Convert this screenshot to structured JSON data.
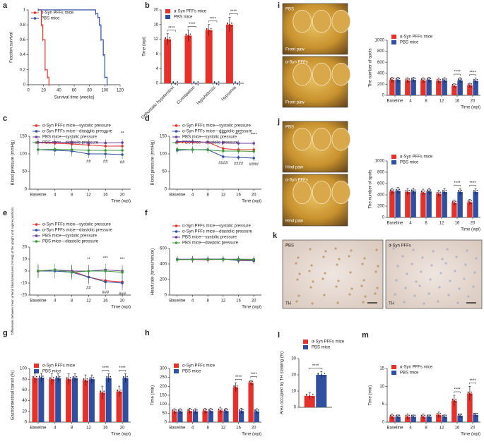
{
  "chart_data": [
    {
      "panel": "a",
      "type": "step",
      "xlabel": "Survival time (weeks)",
      "ylabel": "Fraction survival",
      "xlim": [
        0,
        120
      ],
      "xticks": [
        0,
        20,
        40,
        60,
        80,
        100,
        120
      ],
      "ylim": [
        0,
        1
      ],
      "yticks": [
        0,
        0.2,
        0.4,
        0.6,
        0.8,
        1.0
      ],
      "series": [
        {
          "name": "α-Syn PFFs mice",
          "color": "#e8302b",
          "x": [
            13,
            17,
            19,
            22,
            25,
            27
          ],
          "values": [
            1,
            0.8,
            0.6,
            0.2,
            0.1,
            0
          ]
        },
        {
          "name": "PBS mice",
          "color": "#2f4fa0",
          "x": [
            13,
            88,
            91,
            93,
            95,
            98,
            100,
            103
          ],
          "values": [
            1,
            0.95,
            0.9,
            0.8,
            0.6,
            0.4,
            0.1,
            0
          ]
        }
      ]
    },
    {
      "panel": "b",
      "type": "bar",
      "ylabel": "Time (wpi)",
      "ylim": [
        0,
        20
      ],
      "yticks": [
        0,
        4,
        8,
        12,
        16,
        20
      ],
      "categories": [
        "Orthostatic hypotension",
        "Constipation",
        "Hypohidrosis",
        "Hyposmia"
      ],
      "series": [
        {
          "name": "α-Syn PFFs mice",
          "color": "#e8302b",
          "values": [
            12,
            13,
            14.5,
            16
          ],
          "errors": [
            1.5,
            1.5,
            1.5,
            2
          ]
        },
        {
          "name": "PBS mice",
          "color": "#2f4fa0",
          "values": [
            0,
            0,
            0,
            0
          ],
          "errors": [
            0,
            0,
            0,
            0
          ]
        }
      ],
      "annotations": [
        {
          "text": "****",
          "category": "Orthostatic hypotension"
        },
        {
          "text": "****",
          "category": "Constipation"
        },
        {
          "text": "****",
          "category": "Hypohidrosis"
        },
        {
          "text": "****",
          "category": "Hyposmia"
        }
      ]
    },
    {
      "panel": "c",
      "type": "line",
      "xlabel": "Time (wpi)",
      "ylabel": "Blood pressure (mmHg)",
      "ylim": [
        0,
        150
      ],
      "yticks": [
        0,
        50,
        100,
        150
      ],
      "categories": [
        "Baseline",
        "4",
        "8",
        "12",
        "16",
        "20"
      ],
      "series": [
        {
          "name": "α-Syn PFFs mice—systolic pressure",
          "color": "#e8302b",
          "values": [
            132,
            130,
            128,
            125,
            122,
            122
          ],
          "errors": [
            10,
            10,
            10,
            10,
            10,
            10
          ]
        },
        {
          "name": "α-Syn PFFs mice—diastolic pressure",
          "color": "#2f4fa0",
          "values": [
            112,
            110,
            108,
            100,
            100,
            98
          ],
          "errors": [
            15,
            15,
            15,
            12,
            12,
            12
          ]
        },
        {
          "name": "PBS mice—systolic pressure",
          "color": "#6a3d9a",
          "values": [
            133,
            133,
            133,
            131,
            131,
            132
          ],
          "errors": [
            10,
            10,
            10,
            10,
            10,
            10
          ]
        },
        {
          "name": "PBS mice—diastolic pressure",
          "color": "#3a9a3a",
          "values": [
            112,
            113,
            112,
            110,
            110,
            110
          ],
          "errors": [
            12,
            12,
            12,
            12,
            12,
            12
          ]
        }
      ],
      "annotations": [
        {
          "text": "**",
          "category": "12"
        },
        {
          "text": "**",
          "category": "16"
        },
        {
          "text": "**",
          "category": "20"
        }
      ],
      "annotations_low": [
        {
          "text": "##",
          "category": "12"
        },
        {
          "text": "##",
          "category": "16"
        },
        {
          "text": "##",
          "category": "20"
        }
      ]
    },
    {
      "panel": "d",
      "type": "line",
      "xlabel": "Time (wpi)",
      "ylabel": "Blood pressure (mmHg)",
      "ylim": [
        0,
        150
      ],
      "yticks": [
        0,
        50,
        100,
        150
      ],
      "categories": [
        "Baseline",
        "4",
        "8",
        "12",
        "16",
        "20"
      ],
      "series": [
        {
          "name": "α-Syn PFFs mice—systolic pressure",
          "color": "#e8302b",
          "values": [
            133,
            133,
            133,
            115,
            112,
            112
          ],
          "errors": [
            8,
            8,
            8,
            8,
            8,
            8
          ]
        },
        {
          "name": "α-Syn PFFs mice—diastolic pressure",
          "color": "#2f4fa0",
          "values": [
            110,
            112,
            112,
            92,
            90,
            88
          ],
          "errors": [
            10,
            10,
            10,
            8,
            8,
            8
          ]
        },
        {
          "name": "PBS mice—systolic pressure",
          "color": "#6a3d9a",
          "values": [
            135,
            135,
            133,
            132,
            130,
            130
          ],
          "errors": [
            8,
            8,
            8,
            8,
            8,
            8
          ]
        },
        {
          "name": "PBS mice—diastolic pressure",
          "color": "#3a9a3a",
          "values": [
            113,
            112,
            111,
            108,
            108,
            107
          ],
          "errors": [
            8,
            8,
            8,
            8,
            8,
            8
          ]
        }
      ],
      "annotations": [
        {
          "text": "****",
          "category": "12"
        },
        {
          "text": "****",
          "category": "16"
        },
        {
          "text": "****",
          "category": "20"
        }
      ],
      "annotations_low": [
        {
          "text": "####",
          "category": "12"
        },
        {
          "text": "####",
          "category": "16"
        },
        {
          "text": "####",
          "category": "20"
        }
      ]
    },
    {
      "panel": "e",
      "type": "line",
      "xlabel": "Time (wpi)",
      "ylabel": "Differences between mean arterial blood pressures (mmHg) at the upright and supine positions",
      "ylim": [
        -20,
        20
      ],
      "yticks": [
        -20,
        -10,
        0,
        10,
        20
      ],
      "categories": [
        "Baseline",
        "4",
        "8",
        "12",
        "16",
        "20"
      ],
      "series": [
        {
          "name": "α-Syn PFFs mice—systolic pressure",
          "color": "#e8302b",
          "values": [
            0,
            1,
            0,
            -5,
            -8,
            -9
          ],
          "errors": [
            5,
            5,
            5,
            5,
            5,
            5
          ]
        },
        {
          "name": "α-Syn PFFs mice—diastolic pressure",
          "color": "#2f4fa0",
          "values": [
            0,
            0,
            -1,
            -5,
            -9,
            -10
          ],
          "errors": [
            6,
            6,
            6,
            6,
            6,
            6
          ]
        },
        {
          "name": "PBS mice—systolic pressure",
          "color": "#6a3d9a",
          "values": [
            0,
            1,
            0,
            0,
            1,
            0
          ],
          "errors": [
            5,
            5,
            5,
            5,
            5,
            5
          ]
        },
        {
          "name": "PBS mice—diastolic pressure",
          "color": "#3a9a3a",
          "values": [
            0,
            1,
            -1,
            0,
            0,
            -1
          ],
          "errors": [
            5,
            5,
            5,
            5,
            5,
            5
          ]
        }
      ],
      "annotations": [
        {
          "text": "**",
          "category": "12"
        },
        {
          "text": "***",
          "category": "16"
        },
        {
          "text": "***",
          "category": "20"
        }
      ],
      "annotations_low": [
        {
          "text": "##",
          "category": "12"
        },
        {
          "text": "###",
          "category": "16"
        },
        {
          "text": "###",
          "category": "20"
        }
      ]
    },
    {
      "panel": "f",
      "type": "line",
      "xlabel": "Time (wpi)",
      "ylabel": "Heart rate (times/minute)",
      "ylim": [
        0,
        600
      ],
      "yticks": [
        0,
        200,
        400,
        600
      ],
      "categories": [
        "Baseline",
        "4",
        "8",
        "12",
        "16",
        "20"
      ],
      "series": [
        {
          "name": "α-Syn PFFs mice—systolic pressure",
          "color": "#e8302b",
          "values": [
            460,
            458,
            455,
            462,
            450,
            455
          ],
          "errors": [
            40,
            40,
            40,
            40,
            40,
            40
          ]
        },
        {
          "name": "α-Syn PFFs mice—diastolic pressure",
          "color": "#2f4fa0",
          "values": [
            462,
            460,
            458,
            465,
            445,
            440
          ],
          "errors": [
            40,
            40,
            40,
            40,
            40,
            40
          ]
        },
        {
          "name": "PBS mice—systolic pressure",
          "color": "#6a3d9a",
          "values": [
            458,
            462,
            465,
            460,
            463,
            460
          ],
          "errors": [
            40,
            40,
            40,
            40,
            40,
            40
          ]
        },
        {
          "name": "PBS mice—diastolic pressure",
          "color": "#3a9a3a",
          "values": [
            455,
            458,
            460,
            458,
            460,
            458
          ],
          "errors": [
            40,
            40,
            40,
            40,
            40,
            40
          ]
        }
      ]
    },
    {
      "panel": "g",
      "type": "bar",
      "xlabel": "Time (wpi)",
      "ylabel": "Gastrointestinal transit (%)",
      "ylim": [
        0,
        100
      ],
      "yticks": [
        0,
        20,
        40,
        60,
        80,
        100
      ],
      "categories": [
        "Baseline",
        "4",
        "8",
        "12",
        "16",
        "20"
      ],
      "series": [
        {
          "name": "α-Syn PFFs mice",
          "color": "#e8302b",
          "values": [
            82,
            80,
            80,
            78,
            55,
            57
          ],
          "errors": [
            10,
            10,
            10,
            10,
            12,
            10
          ]
        },
        {
          "name": "PBS mice",
          "color": "#2f4fa0",
          "values": [
            83,
            82,
            82,
            80,
            82,
            82
          ],
          "errors": [
            8,
            8,
            8,
            8,
            8,
            8
          ]
        }
      ],
      "annotations": [
        {
          "text": "****",
          "category": "16"
        },
        {
          "text": "****",
          "category": "20"
        }
      ]
    },
    {
      "panel": "h",
      "type": "bar",
      "xlabel": "Time (wpi)",
      "ylabel": "Time (min)",
      "ylim": [
        0,
        300
      ],
      "yticks": [
        0,
        50,
        100,
        150,
        200,
        250,
        300
      ],
      "categories": [
        "Baseline",
        "4",
        "8",
        "12",
        "16",
        "20"
      ],
      "series": [
        {
          "name": "α-Syn PFFs mice",
          "color": "#e8302b",
          "values": [
            60,
            62,
            62,
            65,
            195,
            220
          ],
          "errors": [
            15,
            15,
            15,
            18,
            25,
            15
          ]
        },
        {
          "name": "PBS mice",
          "color": "#2f4fa0",
          "values": [
            60,
            60,
            62,
            62,
            62,
            60
          ],
          "errors": [
            15,
            15,
            15,
            15,
            15,
            15
          ]
        }
      ],
      "annotations": [
        {
          "text": "****",
          "category": "16"
        },
        {
          "text": "****",
          "category": "20"
        }
      ]
    },
    {
      "panel": "i",
      "type": "bar",
      "xlabel": "Time (wpi)",
      "ylabel": "The number of spots",
      "ylim": [
        0,
        1000
      ],
      "yticks": [
        0,
        200,
        400,
        600,
        800,
        1000
      ],
      "categories": [
        "Baseline",
        "4",
        "8",
        "12",
        "16",
        "20"
      ],
      "series": [
        {
          "name": "α-Syn PFFs mice",
          "color": "#e8302b",
          "values": [
            280,
            270,
            270,
            260,
            170,
            180
          ],
          "errors": [
            50,
            50,
            50,
            50,
            40,
            40
          ]
        },
        {
          "name": "PBS mice",
          "color": "#2f4fa0",
          "values": [
            280,
            280,
            280,
            270,
            270,
            260
          ],
          "errors": [
            50,
            50,
            50,
            50,
            50,
            50
          ]
        }
      ],
      "annotations": [
        {
          "text": "****",
          "category": "16"
        },
        {
          "text": "****",
          "category": "20"
        }
      ]
    },
    {
      "panel": "j",
      "type": "bar",
      "xlabel": "Time (wpi)",
      "ylabel": "The number of spots",
      "ylim": [
        0,
        1000
      ],
      "yticks": [
        0,
        200,
        400,
        600,
        800,
        1000
      ],
      "categories": [
        "Baseline",
        "4",
        "8",
        "12",
        "16",
        "20"
      ],
      "series": [
        {
          "name": "α-Syn PFFs mice",
          "color": "#e8302b",
          "values": [
            460,
            450,
            440,
            420,
            260,
            270
          ],
          "errors": [
            60,
            60,
            60,
            60,
            50,
            50
          ]
        },
        {
          "name": "PBS mice",
          "color": "#2f4fa0",
          "values": [
            470,
            460,
            460,
            450,
            450,
            450
          ],
          "errors": [
            60,
            60,
            60,
            60,
            60,
            60
          ]
        }
      ],
      "annotations": [
        {
          "text": "****",
          "category": "16"
        },
        {
          "text": "****",
          "category": "20"
        }
      ]
    },
    {
      "panel": "l",
      "type": "bar",
      "ylabel": "Area occupied by TH staining (%)",
      "ylim": [
        0,
        30
      ],
      "yticks": [
        0,
        10,
        20,
        30
      ],
      "categories": [
        null
      ],
      "series": [
        {
          "name": "α-Syn PFFs mice",
          "color": "#e8302b",
          "values": [
            7
          ],
          "errors": [
            2
          ]
        },
        {
          "name": "PBS mice",
          "color": "#2f4fa0",
          "values": [
            20
          ],
          "errors": [
            2
          ]
        }
      ],
      "annotations": [
        {
          "text": "****",
          "category": null
        }
      ]
    },
    {
      "panel": "m",
      "type": "bar",
      "xlabel": "Time (wpi)",
      "ylabel": "Time (min)",
      "ylim": [
        0,
        15
      ],
      "yticks": [
        0,
        5,
        10,
        15
      ],
      "categories": [
        "Baseline",
        "4",
        "8",
        "12",
        "16",
        "20"
      ],
      "series": [
        {
          "name": "α-Syn PFFs mice",
          "color": "#e8302b",
          "values": [
            1.5,
            1.5,
            1.5,
            2,
            6,
            8
          ],
          "errors": [
            0.8,
            0.8,
            0.8,
            0.8,
            1.5,
            2
          ]
        },
        {
          "name": "PBS mice",
          "color": "#2f4fa0",
          "values": [
            1.5,
            1.5,
            1.5,
            1.5,
            1.8,
            2
          ],
          "errors": [
            0.5,
            0.5,
            0.5,
            0.5,
            0.5,
            0.5
          ]
        }
      ],
      "annotations": [
        {
          "text": "****",
          "category": "16"
        },
        {
          "text": "****",
          "category": "20"
        }
      ]
    }
  ],
  "photo_panel": "k",
  "photos": [
    {
      "label": "PBS",
      "caption": "Front paw"
    },
    {
      "label": "α-Syn PFFs",
      "caption": "Front paw"
    },
    {
      "label": "PBS",
      "caption": "Hind paw"
    },
    {
      "label": "α-Syn PFFs",
      "caption": "Hind paw"
    },
    {
      "label": "PBS",
      "caption": "TH"
    },
    {
      "label": "α-Syn PFFs",
      "caption": "TH"
    }
  ]
}
